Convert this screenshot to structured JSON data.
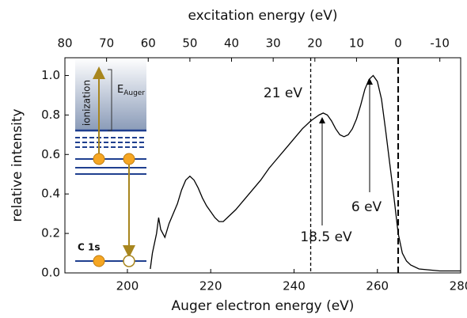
{
  "chart_data": {
    "type": "line",
    "x_label": "Auger electron energy (eV)",
    "x2_label": "excitation energy (eV)",
    "y_label": "relative intensity",
    "xlim": [
      185,
      280
    ],
    "xticks": [
      200,
      220,
      240,
      260,
      280
    ],
    "x2lim": [
      80,
      -15
    ],
    "x2ticks": [
      80,
      70,
      60,
      50,
      40,
      30,
      20,
      10,
      0,
      -10
    ],
    "ylim": [
      0,
      1.09
    ],
    "yticks": [
      {
        "value": 0,
        "label": "0.0"
      },
      {
        "value": 0.2,
        "label": "0.2"
      },
      {
        "value": 0.4,
        "label": "0.4"
      },
      {
        "value": 0.6,
        "label": "0.6"
      },
      {
        "value": 0.8,
        "label": "0.8"
      },
      {
        "value": 1.0,
        "label": "1.0"
      }
    ],
    "x2_lines": [
      21,
      0
    ],
    "annotations": [
      "21 eV",
      "6 eV",
      "18.5 eV"
    ],
    "inset": {
      "ionization": "ionization",
      "e": "E",
      "e_sub": "Auger",
      "core": "C 1s"
    },
    "series": [
      {
        "color": "#000000",
        "x": [
          205.5,
          206,
          207,
          207.5,
          208,
          209,
          210,
          211,
          212,
          213,
          214,
          215,
          216,
          217,
          218,
          219,
          220,
          221,
          222,
          223,
          224,
          226,
          228,
          230,
          232,
          234,
          236,
          238,
          240,
          242,
          244,
          246,
          247,
          248,
          249,
          250,
          251,
          252,
          253,
          254,
          255,
          256,
          257,
          258,
          259,
          260,
          261,
          262,
          263,
          264,
          265,
          266,
          267,
          268,
          270,
          275,
          280
        ],
        "values": [
          0.02,
          0.1,
          0.2,
          0.28,
          0.22,
          0.18,
          0.25,
          0.3,
          0.35,
          0.42,
          0.47,
          0.49,
          0.47,
          0.43,
          0.38,
          0.34,
          0.31,
          0.28,
          0.26,
          0.26,
          0.28,
          0.32,
          0.37,
          0.42,
          0.47,
          0.53,
          0.58,
          0.63,
          0.68,
          0.73,
          0.77,
          0.8,
          0.81,
          0.8,
          0.77,
          0.73,
          0.7,
          0.69,
          0.7,
          0.73,
          0.78,
          0.85,
          0.93,
          0.98,
          1.0,
          0.97,
          0.88,
          0.72,
          0.55,
          0.38,
          0.2,
          0.1,
          0.06,
          0.04,
          0.02,
          0.01,
          0.01
        ]
      }
    ]
  }
}
